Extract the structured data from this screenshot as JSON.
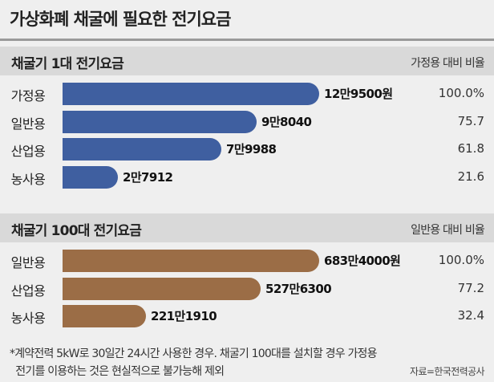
{
  "title": "가상화폐 채굴에 필요한 전기요금",
  "sections": [
    {
      "title": "채굴기 1대 전기요금",
      "note": "가정용 대비 비율",
      "bar_color": "#3f5fa0",
      "rows": [
        {
          "category": "가정용",
          "value_label": "12만9500원",
          "ratio": "100.0%"
        },
        {
          "category": "일반용",
          "value_label": "9만8040",
          "ratio": "75.7"
        },
        {
          "category": "산업용",
          "value_label": "7만9988",
          "ratio": "61.8"
        },
        {
          "category": "농사용",
          "value_label": "2만7912",
          "ratio": "21.6"
        }
      ]
    },
    {
      "title": "채굴기 100대 전기요금",
      "note": "일반용 대비 비율",
      "bar_color": "#9b6d46",
      "rows": [
        {
          "category": "일반용",
          "value_label": "683만4000원",
          "ratio": "100.0%"
        },
        {
          "category": "산업용",
          "value_label": "527만6300",
          "ratio": "77.2"
        },
        {
          "category": "농사용",
          "value_label": "221만1910",
          "ratio": "32.4"
        }
      ]
    }
  ],
  "chart_data": [
    {
      "type": "bar",
      "title": "채굴기 1대 전기요금",
      "categories": [
        "가정용",
        "일반용",
        "산업용",
        "농사용"
      ],
      "values": [
        129500,
        98040,
        79988,
        27912
      ],
      "unit": "원",
      "ratios": [
        100.0,
        75.7,
        61.8,
        21.6
      ],
      "ratio_label": "가정용 대비 비율"
    },
    {
      "type": "bar",
      "title": "채굴기 100대 전기요금",
      "categories": [
        "일반용",
        "산업용",
        "농사용"
      ],
      "values": [
        6834000,
        5276300,
        2211910
      ],
      "unit": "원",
      "ratios": [
        100.0,
        77.2,
        32.4
      ],
      "ratio_label": "일반용 대비 비율"
    }
  ],
  "footnote": {
    "line1": "*계약전력 5kW로 30일간 24시간 사용한 경우. 채굴기 100대를 설치할 경우 가정용",
    "line2": "  전기를 이용하는 것은 현실적으로 불가능해 제외"
  },
  "source": "자료=한국전력공사"
}
